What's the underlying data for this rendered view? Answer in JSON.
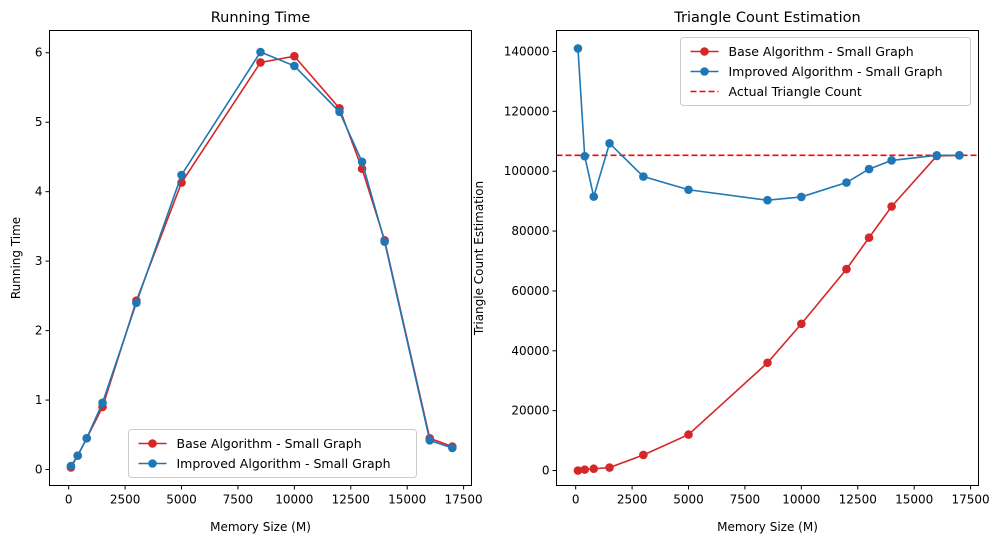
{
  "chart_data": [
    {
      "type": "line",
      "title": "Running Time",
      "xlabel": "Memory Size (M)",
      "ylabel": "Running Time",
      "xlim": [
        -850,
        17850
      ],
      "ylim": [
        -0.23,
        6.32
      ],
      "xticks": [
        0,
        2500,
        5000,
        7500,
        10000,
        12500,
        15000,
        17500
      ],
      "yticks": [
        0,
        1,
        2,
        3,
        4,
        5,
        6
      ],
      "grid": false,
      "legend": "bottom-center",
      "series": [
        {
          "name": "Base Algorithm - Small Graph",
          "color": "#d62728",
          "x": [
            100,
            400,
            800,
            1500,
            3000,
            5000,
            8500,
            10000,
            12000,
            13000,
            14000,
            16000,
            17000
          ],
          "y": [
            0.03,
            0.2,
            0.45,
            0.9,
            2.43,
            4.13,
            5.86,
            5.95,
            5.2,
            4.33,
            3.3,
            0.45,
            0.33
          ]
        },
        {
          "name": "Improved Algorithm - Small Graph",
          "color": "#1f77b4",
          "x": [
            100,
            400,
            800,
            1500,
            3000,
            5000,
            8500,
            10000,
            12000,
            13000,
            14000,
            16000,
            17000
          ],
          "y": [
            0.05,
            0.2,
            0.45,
            0.96,
            2.4,
            4.24,
            6.01,
            5.81,
            5.15,
            4.43,
            3.28,
            0.42,
            0.31
          ]
        }
      ]
    },
    {
      "type": "line",
      "title": "Triangle Count Estimation",
      "xlabel": "Memory Size (M)",
      "ylabel": "Triangle Count Estimation",
      "xlim": [
        -850,
        17850
      ],
      "ylim": [
        -5000,
        147000
      ],
      "xticks": [
        0,
        2500,
        5000,
        7500,
        10000,
        12500,
        15000,
        17500
      ],
      "yticks": [
        0,
        20000,
        40000,
        60000,
        80000,
        100000,
        120000,
        140000
      ],
      "grid": false,
      "legend": "upper-right",
      "reference_line": {
        "name": "Actual Triangle Count",
        "y": 105300,
        "color": "#ff0000",
        "style": "dashed"
      },
      "series": [
        {
          "name": "Base Algorithm - Small Graph",
          "color": "#d62728",
          "x": [
            100,
            400,
            800,
            1500,
            3000,
            5000,
            8500,
            10000,
            12000,
            13000,
            14000,
            16000,
            17000
          ],
          "y": [
            0,
            300,
            600,
            1000,
            5200,
            12000,
            36000,
            49000,
            67300,
            77800,
            88200,
            105100,
            105300
          ]
        },
        {
          "name": "Improved Algorithm - Small Graph",
          "color": "#1f77b4",
          "x": [
            100,
            400,
            800,
            1500,
            3000,
            5000,
            8500,
            10000,
            12000,
            13000,
            14000,
            16000,
            17000
          ],
          "y": [
            141000,
            105000,
            91500,
            109300,
            98200,
            93800,
            90300,
            91400,
            96200,
            100700,
            103600,
            105300,
            105300
          ]
        }
      ]
    }
  ]
}
